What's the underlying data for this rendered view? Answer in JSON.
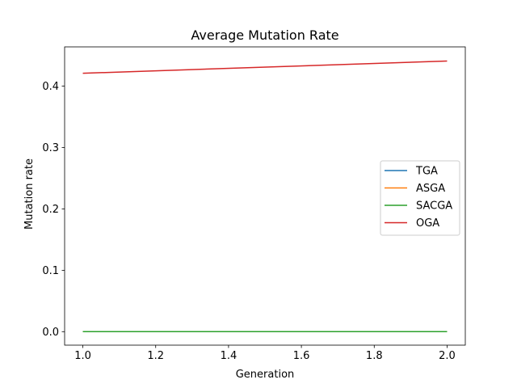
{
  "chart_data": {
    "type": "line",
    "title": "Average Mutation Rate",
    "xlabel": "Generation",
    "ylabel": "Mutation rate",
    "x": [
      1.0,
      2.0
    ],
    "xlim": [
      0.95,
      2.05
    ],
    "ylim": [
      -0.022,
      0.464
    ],
    "xticks": [
      1.0,
      1.2,
      1.4,
      1.6,
      1.8,
      2.0
    ],
    "xtick_labels": [
      "1.0",
      "1.2",
      "1.4",
      "1.6",
      "1.8",
      "2.0"
    ],
    "yticks": [
      0.0,
      0.1,
      0.2,
      0.3,
      0.4
    ],
    "ytick_labels": [
      "0.0",
      "0.1",
      "0.2",
      "0.3",
      "0.4"
    ],
    "grid": false,
    "legend_position": "center-right",
    "series": [
      {
        "name": "TGA",
        "color": "#1f77b4",
        "values": [
          0.0,
          0.0
        ]
      },
      {
        "name": "ASGA",
        "color": "#ff7f0e",
        "values": [
          0.0,
          0.0
        ]
      },
      {
        "name": "SACGA",
        "color": "#2ca02c",
        "values": [
          0.0,
          0.0
        ]
      },
      {
        "name": "OGA",
        "color": "#d62728",
        "values": [
          0.421,
          0.441
        ]
      }
    ]
  }
}
